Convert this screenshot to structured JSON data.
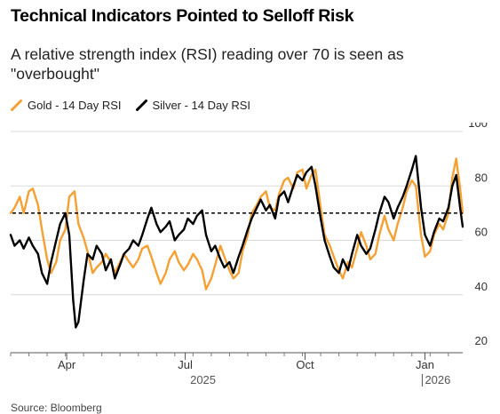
{
  "title": "Technical Indicators Pointed to Selloff Risk",
  "subtitle": "A relative strength index (RSI) reading over 70 is seen as \"overbought\"",
  "source": "Source: Bloomberg",
  "colors": {
    "gold": "#f5a033",
    "silver": "#000000",
    "reference": "#000000",
    "grid": "#d9d9d9"
  },
  "legend": [
    {
      "key": "gold",
      "label": "Gold - 14 Day RSI",
      "icon": "diagonal-line-icon"
    },
    {
      "key": "silver",
      "label": "Silver - 14 Day RSI",
      "icon": "diagonal-line-icon"
    }
  ],
  "chart_data": {
    "type": "line",
    "x_range": [
      "2025-02-17",
      "2026-01-30"
    ],
    "ylim": [
      20,
      100
    ],
    "yticks": [
      20,
      40,
      60,
      80,
      100
    ],
    "grid": true,
    "y_axis_position": "right",
    "legend_placement": "top-left",
    "reference_line": {
      "value": 70,
      "style": "dashed"
    },
    "x_ticks": [
      {
        "label": "Apr",
        "date": "2025-04-01"
      },
      {
        "label": "Jul",
        "date": "2025-07-01"
      },
      {
        "label": "Oct",
        "date": "2025-10-01"
      },
      {
        "label": "Jan",
        "date": "2026-01-01"
      }
    ],
    "year_labels": [
      {
        "label": "2025",
        "date": "2025-07-01"
      },
      {
        "label": "2026",
        "date": "2026-01-01"
      }
    ],
    "series": [
      {
        "key": "gold",
        "name": "Gold - 14 Day RSI",
        "points": [
          [
            "2025-02-17",
            70
          ],
          [
            "2025-02-20",
            72
          ],
          [
            "2025-02-24",
            76
          ],
          [
            "2025-02-27",
            70
          ],
          [
            "2025-03-03",
            78
          ],
          [
            "2025-03-06",
            79
          ],
          [
            "2025-03-10",
            73
          ],
          [
            "2025-03-13",
            64
          ],
          [
            "2025-03-17",
            53
          ],
          [
            "2025-03-20",
            48
          ],
          [
            "2025-03-24",
            52
          ],
          [
            "2025-03-27",
            60
          ],
          [
            "2025-03-31",
            64
          ],
          [
            "2025-04-03",
            76
          ],
          [
            "2025-04-07",
            78
          ],
          [
            "2025-04-10",
            66
          ],
          [
            "2025-04-14",
            61
          ],
          [
            "2025-04-17",
            56
          ],
          [
            "2025-04-21",
            48
          ],
          [
            "2025-04-24",
            50
          ],
          [
            "2025-04-28",
            52
          ],
          [
            "2025-05-01",
            55
          ],
          [
            "2025-05-05",
            52
          ],
          [
            "2025-05-08",
            48
          ],
          [
            "2025-05-12",
            52
          ],
          [
            "2025-05-15",
            55
          ],
          [
            "2025-05-19",
            52
          ],
          [
            "2025-05-22",
            50
          ],
          [
            "2025-05-26",
            53
          ],
          [
            "2025-05-29",
            57
          ],
          [
            "2025-06-02",
            58
          ],
          [
            "2025-06-05",
            54
          ],
          [
            "2025-06-09",
            48
          ],
          [
            "2025-06-12",
            44
          ],
          [
            "2025-06-16",
            48
          ],
          [
            "2025-06-19",
            53
          ],
          [
            "2025-06-23",
            56
          ],
          [
            "2025-06-26",
            52
          ],
          [
            "2025-06-30",
            49
          ],
          [
            "2025-07-03",
            51
          ],
          [
            "2025-07-07",
            55
          ],
          [
            "2025-07-10",
            53
          ],
          [
            "2025-07-14",
            49
          ],
          [
            "2025-07-17",
            42
          ],
          [
            "2025-07-21",
            46
          ],
          [
            "2025-07-24",
            51
          ],
          [
            "2025-07-28",
            58
          ],
          [
            "2025-07-31",
            54
          ],
          [
            "2025-08-04",
            49
          ],
          [
            "2025-08-07",
            46
          ],
          [
            "2025-08-11",
            48
          ],
          [
            "2025-08-14",
            56
          ],
          [
            "2025-08-18",
            62
          ],
          [
            "2025-08-21",
            70
          ],
          [
            "2025-08-25",
            73
          ],
          [
            "2025-08-28",
            76
          ],
          [
            "2025-09-01",
            78
          ],
          [
            "2025-09-04",
            72
          ],
          [
            "2025-09-08",
            71
          ],
          [
            "2025-09-11",
            77
          ],
          [
            "2025-09-15",
            82
          ],
          [
            "2025-09-18",
            83
          ],
          [
            "2025-09-22",
            79
          ],
          [
            "2025-09-25",
            85
          ],
          [
            "2025-09-29",
            86
          ],
          [
            "2025-10-02",
            79
          ],
          [
            "2025-10-06",
            84
          ],
          [
            "2025-10-09",
            86
          ],
          [
            "2025-10-13",
            72
          ],
          [
            "2025-10-16",
            62
          ],
          [
            "2025-10-20",
            58
          ],
          [
            "2025-10-23",
            54
          ],
          [
            "2025-10-27",
            49
          ],
          [
            "2025-10-30",
            46
          ],
          [
            "2025-11-03",
            52
          ],
          [
            "2025-11-06",
            50
          ],
          [
            "2025-11-10",
            57
          ],
          [
            "2025-11-13",
            63
          ],
          [
            "2025-11-17",
            58
          ],
          [
            "2025-11-20",
            53
          ],
          [
            "2025-11-24",
            55
          ],
          [
            "2025-11-27",
            62
          ],
          [
            "2025-12-01",
            69
          ],
          [
            "2025-12-04",
            64
          ],
          [
            "2025-12-08",
            60
          ],
          [
            "2025-12-11",
            66
          ],
          [
            "2025-12-15",
            72
          ],
          [
            "2025-12-18",
            78
          ],
          [
            "2025-12-22",
            82
          ],
          [
            "2025-12-25",
            80
          ],
          [
            "2025-12-29",
            62
          ],
          [
            "2026-01-01",
            54
          ],
          [
            "2026-01-05",
            56
          ],
          [
            "2026-01-08",
            62
          ],
          [
            "2026-01-12",
            66
          ],
          [
            "2026-01-15",
            64
          ],
          [
            "2026-01-19",
            70
          ],
          [
            "2026-01-22",
            83
          ],
          [
            "2026-01-25",
            90
          ],
          [
            "2026-01-28",
            79
          ],
          [
            "2026-01-30",
            70
          ]
        ]
      },
      {
        "key": "silver",
        "name": "Silver - 14 Day RSI",
        "points": [
          [
            "2025-02-17",
            62
          ],
          [
            "2025-02-20",
            58
          ],
          [
            "2025-02-24",
            60
          ],
          [
            "2025-02-27",
            57
          ],
          [
            "2025-03-03",
            61
          ],
          [
            "2025-03-06",
            58
          ],
          [
            "2025-03-10",
            55
          ],
          [
            "2025-03-13",
            48
          ],
          [
            "2025-03-17",
            44
          ],
          [
            "2025-03-20",
            52
          ],
          [
            "2025-03-24",
            60
          ],
          [
            "2025-03-27",
            66
          ],
          [
            "2025-03-31",
            70
          ],
          [
            "2025-04-03",
            62
          ],
          [
            "2025-04-06",
            38
          ],
          [
            "2025-04-08",
            28
          ],
          [
            "2025-04-10",
            30
          ],
          [
            "2025-04-14",
            45
          ],
          [
            "2025-04-17",
            55
          ],
          [
            "2025-04-21",
            53
          ],
          [
            "2025-04-24",
            58
          ],
          [
            "2025-04-28",
            55
          ],
          [
            "2025-05-01",
            49
          ],
          [
            "2025-05-05",
            53
          ],
          [
            "2025-05-08",
            46
          ],
          [
            "2025-05-12",
            51
          ],
          [
            "2025-05-15",
            55
          ],
          [
            "2025-05-19",
            57
          ],
          [
            "2025-05-22",
            60
          ],
          [
            "2025-05-26",
            58
          ],
          [
            "2025-05-29",
            62
          ],
          [
            "2025-06-02",
            68
          ],
          [
            "2025-06-05",
            72
          ],
          [
            "2025-06-09",
            66
          ],
          [
            "2025-06-12",
            63
          ],
          [
            "2025-06-16",
            65
          ],
          [
            "2025-06-19",
            67
          ],
          [
            "2025-06-23",
            60
          ],
          [
            "2025-06-26",
            62
          ],
          [
            "2025-06-30",
            64
          ],
          [
            "2025-07-03",
            68
          ],
          [
            "2025-07-07",
            66
          ],
          [
            "2025-07-10",
            69
          ],
          [
            "2025-07-14",
            71
          ],
          [
            "2025-07-17",
            62
          ],
          [
            "2025-07-21",
            56
          ],
          [
            "2025-07-24",
            58
          ],
          [
            "2025-07-28",
            53
          ],
          [
            "2025-07-31",
            50
          ],
          [
            "2025-08-04",
            52
          ],
          [
            "2025-08-07",
            48
          ],
          [
            "2025-08-11",
            54
          ],
          [
            "2025-08-14",
            58
          ],
          [
            "2025-08-18",
            64
          ],
          [
            "2025-08-21",
            68
          ],
          [
            "2025-08-25",
            72
          ],
          [
            "2025-08-28",
            75
          ],
          [
            "2025-09-01",
            71
          ],
          [
            "2025-09-04",
            73
          ],
          [
            "2025-09-08",
            68
          ],
          [
            "2025-09-11",
            76
          ],
          [
            "2025-09-15",
            78
          ],
          [
            "2025-09-18",
            74
          ],
          [
            "2025-09-22",
            80
          ],
          [
            "2025-09-25",
            84
          ],
          [
            "2025-09-29",
            82
          ],
          [
            "2025-10-02",
            85
          ],
          [
            "2025-10-06",
            87
          ],
          [
            "2025-10-09",
            80
          ],
          [
            "2025-10-13",
            68
          ],
          [
            "2025-10-16",
            60
          ],
          [
            "2025-10-20",
            54
          ],
          [
            "2025-10-23",
            50
          ],
          [
            "2025-10-27",
            48
          ],
          [
            "2025-10-30",
            53
          ],
          [
            "2025-11-03",
            49
          ],
          [
            "2025-11-06",
            55
          ],
          [
            "2025-11-10",
            62
          ],
          [
            "2025-11-13",
            58
          ],
          [
            "2025-11-17",
            55
          ],
          [
            "2025-11-20",
            57
          ],
          [
            "2025-11-24",
            64
          ],
          [
            "2025-11-27",
            70
          ],
          [
            "2025-12-01",
            76
          ],
          [
            "2025-12-04",
            74
          ],
          [
            "2025-12-08",
            68
          ],
          [
            "2025-12-11",
            72
          ],
          [
            "2025-12-15",
            76
          ],
          [
            "2025-12-18",
            80
          ],
          [
            "2025-12-22",
            86
          ],
          [
            "2025-12-25",
            91
          ],
          [
            "2025-12-29",
            72
          ],
          [
            "2026-01-01",
            62
          ],
          [
            "2026-01-05",
            58
          ],
          [
            "2026-01-08",
            63
          ],
          [
            "2026-01-12",
            68
          ],
          [
            "2026-01-15",
            67
          ],
          [
            "2026-01-19",
            72
          ],
          [
            "2026-01-22",
            80
          ],
          [
            "2026-01-25",
            84
          ],
          [
            "2026-01-28",
            72
          ],
          [
            "2026-01-30",
            65
          ]
        ]
      }
    ]
  }
}
